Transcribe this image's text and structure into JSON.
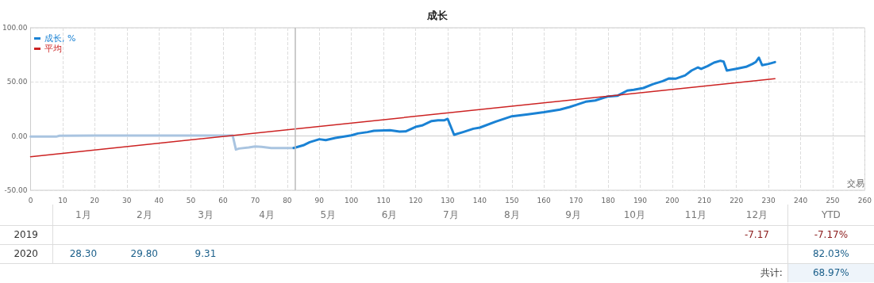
{
  "chart_data": [
    {
      "type": "line",
      "title": "成长",
      "xlabel": "交易",
      "xlim": [
        0,
        260
      ],
      "xticks": [
        0,
        10,
        20,
        30,
        40,
        50,
        60,
        70,
        80,
        90,
        100,
        110,
        120,
        130,
        140,
        150,
        160,
        170,
        180,
        190,
        200,
        210,
        220,
        230,
        240,
        250,
        260
      ],
      "ylim": [
        -50,
        100
      ],
      "yticks": [
        {
          "value": -50,
          "label": "-50.00"
        },
        {
          "value": 0,
          "label": "0.00"
        },
        {
          "value": 50,
          "label": "50.00"
        },
        {
          "value": 100,
          "label": "100.00"
        }
      ],
      "grid": true,
      "legend": "top left",
      "ref_lines": [
        {
          "axis": "x",
          "value": 82.5,
          "color": "#bbbbbb"
        }
      ],
      "series": [
        {
          "color": "#a9c4e0",
          "x": [
            0,
            8,
            9,
            20,
            40,
            60,
            63,
            64,
            65,
            68,
            70,
            72,
            75,
            78,
            82
          ],
          "values": [
            -0.5,
            -0.5,
            0.3,
            0.4,
            0.5,
            0.5,
            0.5,
            -12.4,
            -11.5,
            -10.5,
            -9.5,
            -10,
            -11,
            -11,
            -11
          ]
        },
        {
          "name": "成长, %",
          "color": "#1a82d4",
          "x": [
            82,
            85,
            87,
            90,
            92,
            95,
            100,
            102,
            105,
            107,
            112,
            115,
            117,
            120,
            122,
            125,
            127,
            129,
            130,
            132,
            135,
            138,
            140,
            145,
            150,
            155,
            160,
            165,
            168,
            170,
            173,
            176,
            180,
            183,
            186,
            188,
            191,
            194,
            197,
            199,
            201,
            204,
            206,
            208,
            209,
            211,
            213,
            215,
            216,
            217,
            220,
            223,
            225,
            226,
            227,
            228,
            230,
            232
          ],
          "values": [
            -11,
            -8.5,
            -5.6,
            -2.9,
            -3.7,
            -1.7,
            0.7,
            2.4,
            3.7,
            4.9,
            5.4,
            4.1,
            4.4,
            8.5,
            9.8,
            13.9,
            14.6,
            14.6,
            15.9,
            1.2,
            3.9,
            6.8,
            7.8,
            13.4,
            18.3,
            20,
            22,
            24.4,
            26.8,
            28.8,
            31.7,
            32.9,
            36.6,
            37.3,
            42,
            42.7,
            44.4,
            48,
            50.7,
            53.2,
            52.9,
            56,
            60.5,
            63.4,
            62,
            64.6,
            67.8,
            69.5,
            68.8,
            60.5,
            62.2,
            63.9,
            66.6,
            68.3,
            72.4,
            65.4,
            66.6,
            68.3
          ]
        },
        {
          "name": "平均",
          "color": "#cc2222",
          "x": [
            0,
            232
          ],
          "values": [
            -19,
            53
          ]
        }
      ]
    },
    {
      "type": "heatmap",
      "categories": [
        "1月",
        "2月",
        "3月",
        "4月",
        "5月",
        "6月",
        "7月",
        "8月",
        "9月",
        "10月",
        "11月",
        "12月",
        "YTD"
      ],
      "y_categories": [
        "2019",
        "2020"
      ],
      "cells": [
        [
          null,
          null,
          null,
          null,
          null,
          null,
          null,
          null,
          null,
          null,
          null,
          -7.17,
          -7.17
        ],
        [
          28.3,
          29.8,
          9.31,
          null,
          null,
          null,
          null,
          null,
          null,
          null,
          null,
          null,
          82.03
        ]
      ],
      "cell_labels": [
        [
          null,
          null,
          null,
          null,
          null,
          null,
          null,
          null,
          null,
          null,
          null,
          "-7.17",
          "-7.17%"
        ],
        [
          "28.30",
          "29.80",
          "9.31",
          null,
          null,
          null,
          null,
          null,
          null,
          null,
          null,
          null,
          "82.03%"
        ]
      ],
      "annotations": [
        "共计:",
        "68.97%"
      ]
    }
  ]
}
